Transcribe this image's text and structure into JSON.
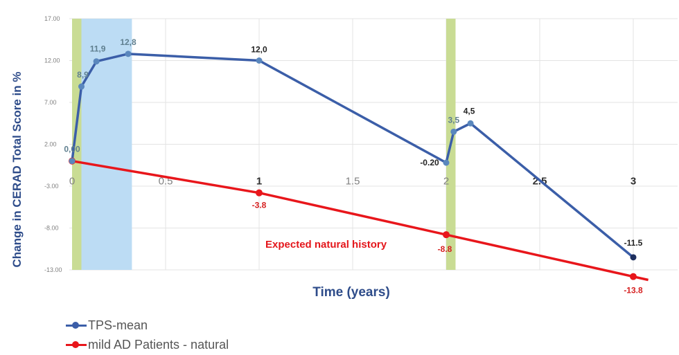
{
  "chart_data": {
    "type": "line",
    "title": "",
    "xlabel": "Time (years)",
    "ylabel": "Change in CERAD Total Score in %",
    "xlim": [
      0,
      3.08
    ],
    "ylim": [
      -13,
      17
    ],
    "y_ticks": [
      "17.00",
      "12.00",
      "7.00",
      "2.00",
      "-3.00",
      "-8.00",
      "-13.00"
    ],
    "y_tick_values": [
      17,
      12,
      7,
      2,
      -3,
      -8,
      -13
    ],
    "x_ticks": [
      {
        "label": "0",
        "value": 0,
        "bold": false
      },
      {
        "label": "0.5",
        "value": 0.5,
        "bold": false
      },
      {
        "label": "1",
        "value": 1,
        "bold": true
      },
      {
        "label": "1.5",
        "value": 1.5,
        "bold": false
      },
      {
        "label": "2",
        "value": 2,
        "bold": false
      },
      {
        "label": "2.5",
        "value": 2.5,
        "bold": true
      },
      {
        "label": "3",
        "value": 3,
        "bold": true
      }
    ],
    "shaded_regions": [
      {
        "from": 0,
        "to": 0.05,
        "color": "#c9dc94"
      },
      {
        "from": 0.05,
        "to": 0.32,
        "color": "#bcdcf4"
      },
      {
        "from": 2.0,
        "to": 2.05,
        "color": "#c9dc94"
      }
    ],
    "series": [
      {
        "name": "TPS-mean",
        "color": "#3b5ea8",
        "points": [
          {
            "x": 0,
            "y": 0,
            "label": "0,00"
          },
          {
            "x": 0.05,
            "y": 8.9,
            "label": "8,9"
          },
          {
            "x": 0.13,
            "y": 11.9,
            "label": "11,9"
          },
          {
            "x": 0.3,
            "y": 12.8,
            "label": "12,8"
          },
          {
            "x": 1.0,
            "y": 12.0,
            "label": "12,0"
          },
          {
            "x": 2.0,
            "y": -0.2,
            "label": "-0.20"
          },
          {
            "x": 2.04,
            "y": 3.5,
            "label": "3,5"
          },
          {
            "x": 2.13,
            "y": 4.5,
            "label": "4,5"
          },
          {
            "x": 3.0,
            "y": -11.5,
            "label": "-11.5"
          }
        ]
      },
      {
        "name": "mild AD Patients - natural",
        "color": "#e8161b",
        "points": [
          {
            "x": 0,
            "y": 0,
            "label": ""
          },
          {
            "x": 1.0,
            "y": -3.8,
            "label": "-3.8"
          },
          {
            "x": 2.0,
            "y": -8.8,
            "label": "-8.8"
          },
          {
            "x": 3.0,
            "y": -13.8,
            "label": "-13.8"
          }
        ],
        "extend_to_x": 3.08
      }
    ],
    "annotation": "Expected natural history",
    "legend": "bottom-left"
  },
  "legend": {
    "items": [
      {
        "label": "TPS-mean",
        "color": "#3b5ea8"
      },
      {
        "label": "mild AD Patients - natural",
        "color": "#e8161b"
      }
    ]
  }
}
